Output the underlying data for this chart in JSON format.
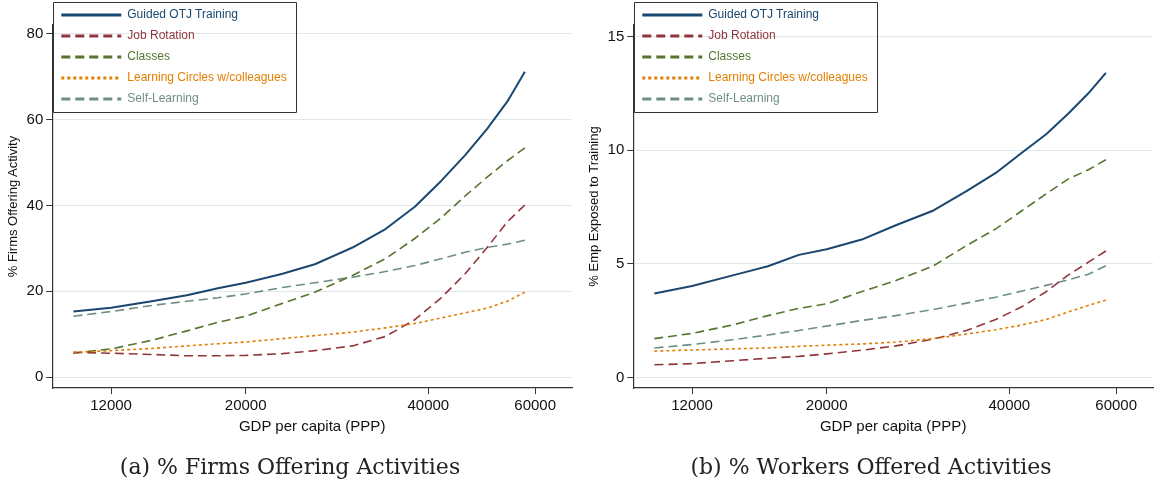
{
  "chart_data": [
    {
      "type": "line",
      "title": "(a) % Firms Offering Activities",
      "xlabel": "GDP per capita (PPP)",
      "ylabel": "% Firms Offering Activity",
      "log": "x",
      "grid": "y",
      "legend": "top left",
      "marker": "none",
      "x": [
        10400,
        12000,
        14000,
        16000,
        18000,
        20000,
        23000,
        26000,
        30000,
        34000,
        38000,
        42000,
        46000,
        50000,
        54000,
        57700
      ],
      "xlim": [
        9600,
        69000
      ],
      "xticks": [
        12000,
        20000,
        40000,
        60000
      ],
      "ylim": [
        -2.5,
        82
      ],
      "yticks": [
        0,
        20,
        40,
        60,
        80
      ],
      "series": [
        {
          "name": "Guided OTJ Training",
          "color": "#1a476f",
          "line_style": "solid",
          "values": [
            15.3,
            16.2,
            17.7,
            19.1,
            20.7,
            22.0,
            24.1,
            26.3,
            30.2,
            34.5,
            39.7,
            45.7,
            51.7,
            57.8,
            64.2,
            71.1
          ]
        },
        {
          "name": "Job Rotation",
          "color": "#90353b",
          "line_style": "dashed",
          "values": [
            5.8,
            5.6,
            5.3,
            5.0,
            5.0,
            5.1,
            5.5,
            6.2,
            7.3,
            9.5,
            13.4,
            18.5,
            24.1,
            30.2,
            36.2,
            40.1
          ]
        },
        {
          "name": "Classes",
          "color": "#55752f",
          "line_style": "dashed",
          "values": [
            5.6,
            6.6,
            8.6,
            10.8,
            12.8,
            14.2,
            17.2,
            19.8,
            23.7,
            27.6,
            32.3,
            37.1,
            42.2,
            46.6,
            50.4,
            53.4
          ]
        },
        {
          "name": "Learning Circles w/colleagues",
          "color": "#e37e00",
          "line_style": "dotted",
          "values": [
            5.8,
            6.2,
            6.7,
            7.3,
            7.8,
            8.2,
            9.0,
            9.7,
            10.5,
            11.5,
            12.5,
            13.8,
            15.0,
            16.1,
            17.7,
            19.8
          ]
        },
        {
          "name": "Self-Learning",
          "color": "#6e8e84",
          "line_style": "dashed",
          "values": [
            14.2,
            15.3,
            16.7,
            17.7,
            18.5,
            19.4,
            20.9,
            22.0,
            23.3,
            24.6,
            26.0,
            27.6,
            29.1,
            30.2,
            31.0,
            31.9
          ]
        }
      ]
    },
    {
      "type": "line",
      "title": "(b) % Workers Offered Activities",
      "xlabel": "GDP per capita (PPP)",
      "ylabel": "% Emp Exposed to Training",
      "log": "x",
      "grid": "y",
      "legend": "top left",
      "marker": "none",
      "x": [
        10400,
        12000,
        14000,
        16000,
        18000,
        20000,
        23000,
        26000,
        30000,
        34000,
        38000,
        42000,
        46000,
        50000,
        54000,
        57700
      ],
      "xlim": [
        9600,
        69000
      ],
      "xticks": [
        12000,
        20000,
        40000,
        60000
      ],
      "ylim": [
        -0.45,
        15.5
      ],
      "yticks": [
        0,
        5,
        10,
        15
      ],
      "series": [
        {
          "name": "Guided OTJ Training",
          "color": "#1a476f",
          "line_style": "solid",
          "values": [
            3.7,
            4.03,
            4.5,
            4.9,
            5.4,
            5.65,
            6.1,
            6.7,
            7.35,
            8.2,
            9.0,
            9.9,
            10.7,
            11.6,
            12.5,
            13.4
          ]
        },
        {
          "name": "Job Rotation",
          "color": "#90353b",
          "line_style": "dashed",
          "values": [
            0.57,
            0.62,
            0.75,
            0.86,
            0.94,
            1.05,
            1.22,
            1.4,
            1.7,
            2.08,
            2.56,
            3.13,
            3.78,
            4.51,
            5.08,
            5.57
          ]
        },
        {
          "name": "Classes",
          "color": "#55752f",
          "line_style": "dashed",
          "values": [
            1.72,
            1.95,
            2.32,
            2.73,
            3.05,
            3.25,
            3.81,
            4.27,
            4.92,
            5.81,
            6.54,
            7.35,
            8.08,
            8.73,
            9.14,
            9.58
          ]
        },
        {
          "name": "Learning Circles w/colleagues",
          "color": "#e37e00",
          "line_style": "dotted",
          "values": [
            1.17,
            1.22,
            1.27,
            1.31,
            1.38,
            1.43,
            1.49,
            1.57,
            1.72,
            1.92,
            2.11,
            2.32,
            2.56,
            2.89,
            3.18,
            3.41
          ]
        },
        {
          "name": "Self-Learning",
          "color": "#6e8e84",
          "line_style": "dashed",
          "values": [
            1.31,
            1.46,
            1.67,
            1.88,
            2.08,
            2.27,
            2.53,
            2.73,
            3.0,
            3.28,
            3.54,
            3.81,
            4.06,
            4.3,
            4.55,
            4.92
          ]
        }
      ]
    }
  ]
}
